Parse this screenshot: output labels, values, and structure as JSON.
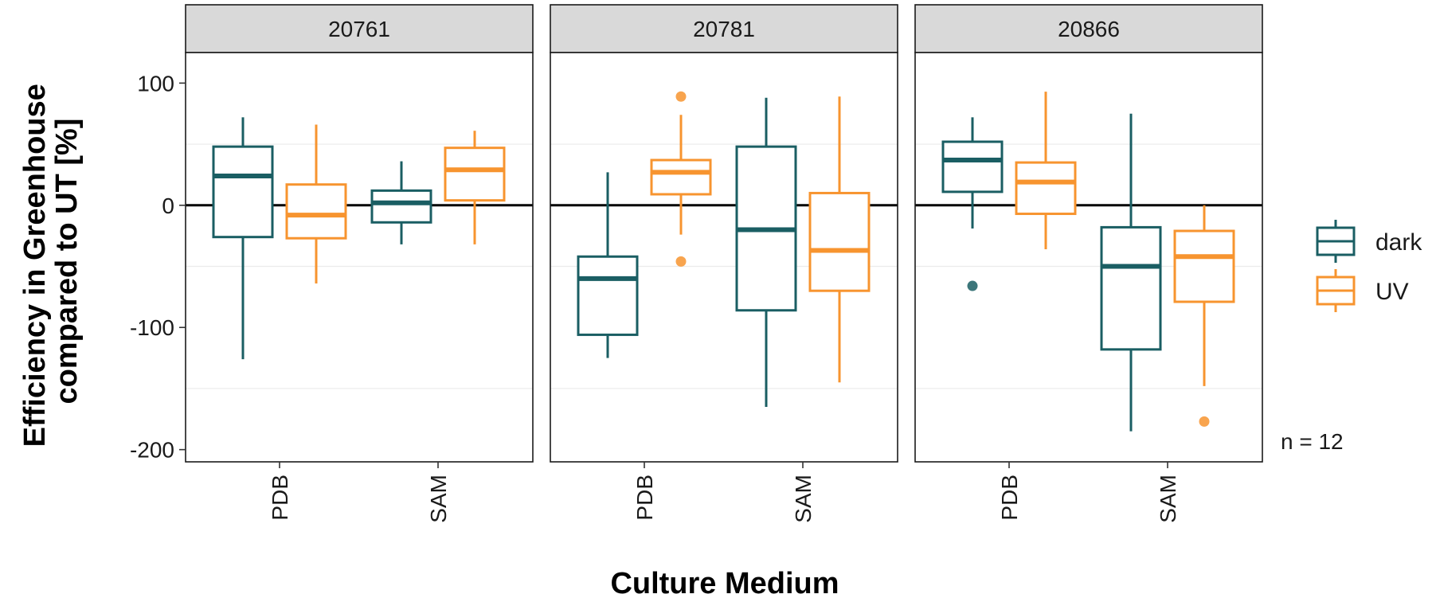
{
  "chart_data": {
    "type": "boxplot",
    "title": "",
    "xlabel": "Culture Medium",
    "ylabel": [
      "Efficiency in Greenhouse",
      "compared to UT [%]"
    ],
    "ylim": [
      -210,
      125
    ],
    "y_ticks": [
      100,
      0,
      -100,
      -200
    ],
    "hline": 0,
    "grid": true,
    "annotation": "n = 12",
    "legend": {
      "position": "right",
      "items": [
        {
          "name": "dark",
          "color": "#1a5e63"
        },
        {
          "name": "UV",
          "color": "#f7942f"
        }
      ]
    },
    "categories": [
      "PDB",
      "SAM"
    ],
    "panels": [
      {
        "label": "20761",
        "boxes": [
          {
            "category": "PDB",
            "series": "dark",
            "lower_whisker": -126,
            "q1": -26,
            "median": 24,
            "q3": 48,
            "upper_whisker": 72,
            "outliers": []
          },
          {
            "category": "PDB",
            "series": "UV",
            "lower_whisker": -64,
            "q1": -27,
            "median": -8,
            "q3": 17,
            "upper_whisker": 66,
            "outliers": []
          },
          {
            "category": "SAM",
            "series": "dark",
            "lower_whisker": -32,
            "q1": -14,
            "median": 2,
            "q3": 12,
            "upper_whisker": 36,
            "outliers": []
          },
          {
            "category": "SAM",
            "series": "UV",
            "lower_whisker": -32,
            "q1": 4,
            "median": 29,
            "q3": 47,
            "upper_whisker": 61,
            "outliers": []
          }
        ]
      },
      {
        "label": "20781",
        "boxes": [
          {
            "category": "PDB",
            "series": "dark",
            "lower_whisker": -125,
            "q1": -106,
            "median": -60,
            "q3": -42,
            "upper_whisker": 27,
            "outliers": []
          },
          {
            "category": "PDB",
            "series": "UV",
            "lower_whisker": -24,
            "q1": 9,
            "median": 27,
            "q3": 37,
            "upper_whisker": 74,
            "outliers": [
              89,
              -46
            ]
          },
          {
            "category": "SAM",
            "series": "dark",
            "lower_whisker": -165,
            "q1": -86,
            "median": -20,
            "q3": 48,
            "upper_whisker": 88,
            "outliers": []
          },
          {
            "category": "SAM",
            "series": "UV",
            "lower_whisker": -145,
            "q1": -70,
            "median": -37,
            "q3": 10,
            "upper_whisker": 89,
            "outliers": []
          }
        ]
      },
      {
        "label": "20866",
        "boxes": [
          {
            "category": "PDB",
            "series": "dark",
            "lower_whisker": -19,
            "q1": 11,
            "median": 37,
            "q3": 52,
            "upper_whisker": 72,
            "outliers": [
              -66
            ]
          },
          {
            "category": "PDB",
            "series": "UV",
            "lower_whisker": -36,
            "q1": -7,
            "median": 19,
            "q3": 35,
            "upper_whisker": 93,
            "outliers": []
          },
          {
            "category": "SAM",
            "series": "dark",
            "lower_whisker": -185,
            "q1": -118,
            "median": -50,
            "q3": -18,
            "upper_whisker": 75,
            "outliers": []
          },
          {
            "category": "SAM",
            "series": "UV",
            "lower_whisker": -148,
            "q1": -79,
            "median": -42,
            "q3": -21,
            "upper_whisker": 0,
            "outliers": [
              -177
            ]
          }
        ]
      }
    ]
  }
}
